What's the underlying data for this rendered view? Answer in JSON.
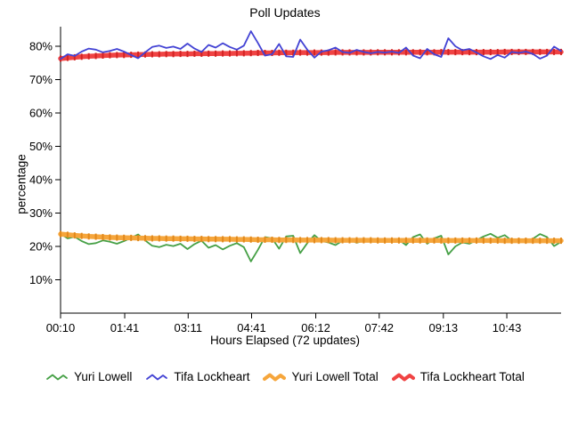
{
  "title": "Poll Updates",
  "chart_data": {
    "type": "line",
    "title": "Poll Updates",
    "xlabel": "Hours Elapsed (72 updates)",
    "ylabel": "percentage",
    "n_points": 72,
    "x_range_minutes": [
      10,
      720
    ],
    "x_tick_minutes": [
      10,
      101,
      191,
      281,
      372,
      462,
      553,
      643
    ],
    "x_tick_labels": [
      "00:10",
      "01:41",
      "03:11",
      "04:41",
      "06:12",
      "07:42",
      "09:13",
      "10:43"
    ],
    "y_tick_values": [
      10,
      20,
      30,
      40,
      50,
      60,
      70,
      80
    ],
    "y_tick_labels": [
      "10%",
      "20%",
      "30%",
      "40%",
      "50%",
      "60%",
      "70%",
      "80%"
    ],
    "ylim": [
      0,
      86
    ],
    "grid": false,
    "legend_position": "bottom",
    "draw_order": [
      "Yuri Lowell",
      "Yuri Lowell Total",
      "Tifa Lockheart Total",
      "Tifa Lockheart"
    ],
    "series": [
      {
        "name": "Yuri Lowell",
        "style": "thin",
        "color": "#46a046",
        "values": [
          23.8,
          22.4,
          22.9,
          21.6,
          20.7,
          21.0,
          21.8,
          21.4,
          20.8,
          21.6,
          22.6,
          23.6,
          21.8,
          20.2,
          19.8,
          20.5,
          20.1,
          20.8,
          19.2,
          20.7,
          21.7,
          19.6,
          20.4,
          19.1,
          20.2,
          21.0,
          19.8,
          15.5,
          19.0,
          22.8,
          22.4,
          19.3,
          23.0,
          23.2,
          18.0,
          21.0,
          23.4,
          21.6,
          21.2,
          20.4,
          21.7,
          22.0,
          21.1,
          21.7,
          22.1,
          21.7,
          21.9,
          21.6,
          22.0,
          20.4,
          22.8,
          23.6,
          20.8,
          22.4,
          23.2,
          17.6,
          20.0,
          21.2,
          20.8,
          21.9,
          23.0,
          23.8,
          22.6,
          23.4,
          21.7,
          22.0,
          21.6,
          22.3,
          23.7,
          22.8,
          20.1,
          21.4
        ]
      },
      {
        "name": "Tifa Lockheart",
        "style": "thin",
        "color": "#4343d4",
        "values": [
          76.2,
          77.6,
          77.1,
          78.4,
          79.3,
          79.0,
          78.2,
          78.6,
          79.2,
          78.4,
          77.4,
          76.4,
          78.2,
          79.8,
          80.2,
          79.5,
          79.9,
          79.2,
          80.8,
          79.3,
          78.3,
          80.4,
          79.6,
          80.9,
          79.8,
          79.0,
          80.2,
          84.5,
          81.0,
          77.2,
          77.6,
          80.7,
          77.0,
          76.8,
          82.0,
          79.0,
          76.6,
          78.4,
          78.8,
          79.6,
          78.3,
          78.0,
          78.9,
          78.3,
          77.9,
          78.3,
          78.1,
          78.4,
          78.0,
          79.6,
          77.2,
          76.4,
          79.2,
          77.6,
          76.8,
          82.4,
          80.0,
          78.8,
          79.2,
          78.1,
          77.0,
          76.2,
          77.4,
          76.6,
          78.3,
          78.0,
          78.4,
          77.7,
          76.3,
          77.2,
          79.9,
          78.6
        ]
      },
      {
        "name": "Yuri Lowell Total",
        "style": "thick",
        "color": "#f6a63c",
        "marker_color": "#e2891c",
        "values": [
          23.7,
          23.5,
          23.3,
          23.15,
          23.0,
          22.9,
          22.8,
          22.7,
          22.65,
          22.6,
          22.55,
          22.5,
          22.45,
          22.4,
          22.4,
          22.35,
          22.35,
          22.3,
          22.3,
          22.25,
          22.25,
          22.2,
          22.2,
          22.15,
          22.15,
          22.1,
          22.1,
          22.05,
          22.0,
          22.0,
          22.0,
          21.95,
          21.95,
          21.95,
          21.9,
          21.9,
          21.9,
          21.9,
          21.9,
          21.85,
          21.85,
          21.85,
          21.85,
          21.85,
          21.85,
          21.8,
          21.8,
          21.8,
          21.8,
          21.8,
          21.8,
          21.8,
          21.8,
          21.8,
          21.75,
          21.75,
          21.75,
          21.75,
          21.75,
          21.75,
          21.75,
          21.75,
          21.75,
          21.7,
          21.7,
          21.7,
          21.7,
          21.7,
          21.7,
          21.7,
          21.7,
          21.7
        ]
      },
      {
        "name": "Tifa Lockheart Total",
        "style": "thick",
        "color": "#f04343",
        "marker_color": "#d32424",
        "values": [
          76.3,
          76.5,
          76.7,
          76.85,
          77.0,
          77.1,
          77.2,
          77.3,
          77.35,
          77.4,
          77.45,
          77.5,
          77.55,
          77.6,
          77.6,
          77.65,
          77.65,
          77.7,
          77.7,
          77.75,
          77.75,
          77.8,
          77.8,
          77.85,
          77.85,
          77.9,
          77.9,
          77.95,
          78.0,
          78.0,
          78.0,
          78.05,
          78.05,
          78.05,
          78.1,
          78.1,
          78.1,
          78.1,
          78.1,
          78.15,
          78.15,
          78.15,
          78.15,
          78.15,
          78.15,
          78.2,
          78.2,
          78.2,
          78.2,
          78.2,
          78.2,
          78.2,
          78.2,
          78.2,
          78.25,
          78.25,
          78.25,
          78.25,
          78.25,
          78.25,
          78.25,
          78.25,
          78.25,
          78.3,
          78.3,
          78.3,
          78.3,
          78.3,
          78.3,
          78.3,
          78.3,
          78.3
        ]
      }
    ]
  }
}
